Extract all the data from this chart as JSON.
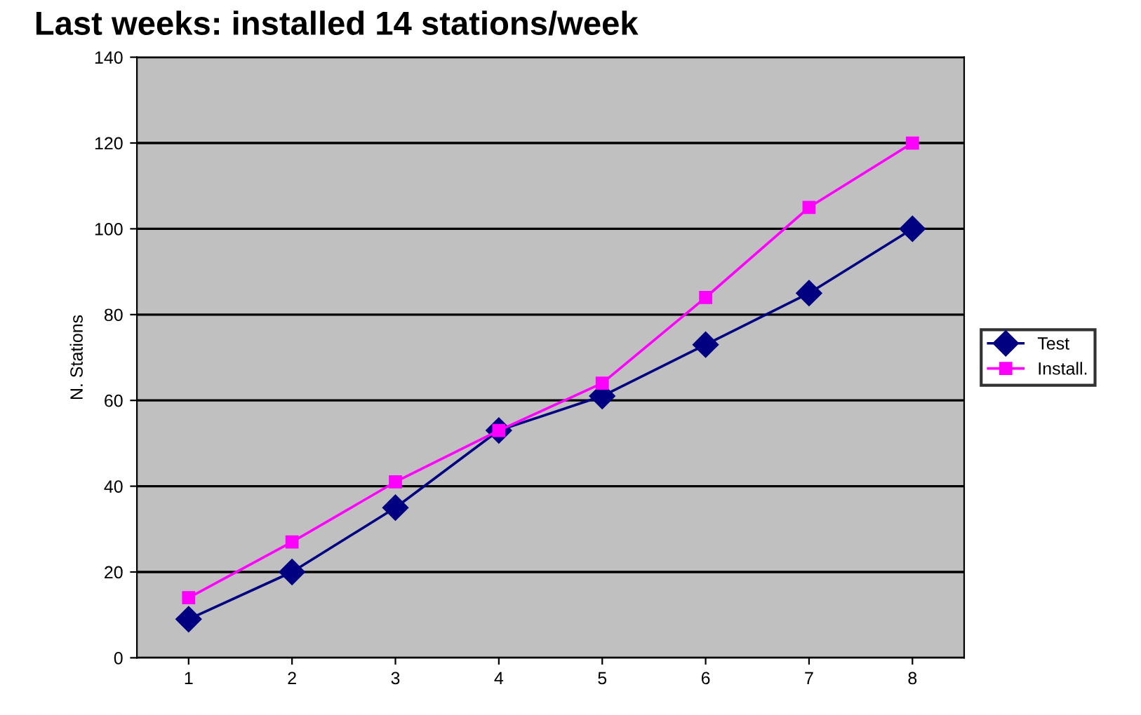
{
  "chart_data": {
    "type": "line",
    "title": "Last weeks: installed 14 stations/week",
    "ylabel": "N. Stations",
    "categories": [
      "1",
      "2",
      "3",
      "4",
      "5",
      "6",
      "7",
      "8"
    ],
    "series": [
      {
        "name": "Test",
        "color": "#000080",
        "marker": "diamond",
        "values": [
          9,
          20,
          35,
          53,
          61,
          73,
          85,
          100
        ]
      },
      {
        "name": "Install.",
        "color": "#ff00ff",
        "marker": "square",
        "values": [
          14,
          27,
          41,
          53,
          64,
          84,
          105,
          120
        ]
      }
    ],
    "ylim": [
      0,
      140
    ],
    "yticks": [
      0,
      20,
      40,
      60,
      80,
      100,
      120,
      140
    ],
    "grid": "y",
    "legend": "right"
  }
}
